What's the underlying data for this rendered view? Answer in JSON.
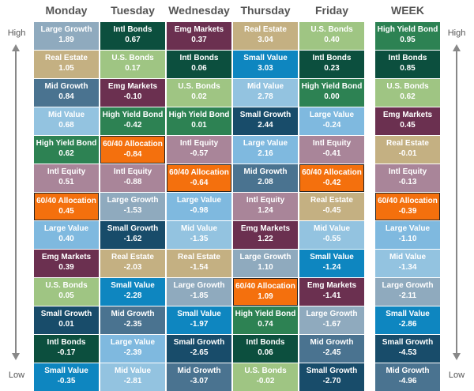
{
  "chart_data": {
    "type": "table",
    "axis": {
      "top": "High",
      "bottom": "Low"
    },
    "columns": [
      "Monday",
      "Tuesday",
      "Wednesday",
      "Thursday",
      "Friday",
      "WEEK"
    ],
    "data": [
      [
        {
          "name": "Large Growth",
          "value": "1.89"
        },
        {
          "name": "Real Estate",
          "value": "1.05"
        },
        {
          "name": "Mid Growth",
          "value": "0.84"
        },
        {
          "name": "Mid Value",
          "value": "0.68"
        },
        {
          "name": "High Yield Bond",
          "value": "0.62"
        },
        {
          "name": "Intl Equity",
          "value": "0.51"
        },
        {
          "name": "60/40 Allocation",
          "value": "0.45"
        },
        {
          "name": "Large Value",
          "value": "0.40"
        },
        {
          "name": "Emg Markets",
          "value": "0.39"
        },
        {
          "name": "U.S. Bonds",
          "value": "0.05"
        },
        {
          "name": "Small Growth",
          "value": "0.01"
        },
        {
          "name": "Intl Bonds",
          "value": "-0.17"
        },
        {
          "name": "Small Value",
          "value": "-0.35"
        }
      ],
      [
        {
          "name": "Intl Bonds",
          "value": "0.67"
        },
        {
          "name": "U.S. Bonds",
          "value": "0.17"
        },
        {
          "name": "Emg Markets",
          "value": "-0.10"
        },
        {
          "name": "High Yield Bond",
          "value": "-0.42"
        },
        {
          "name": "60/40 Allocation",
          "value": "-0.84"
        },
        {
          "name": "Intl Equity",
          "value": "-0.88"
        },
        {
          "name": "Large Growth",
          "value": "-1.53"
        },
        {
          "name": "Small Growth",
          "value": "-1.62"
        },
        {
          "name": "Real Estate",
          "value": "-2.03"
        },
        {
          "name": "Small Value",
          "value": "-2.28"
        },
        {
          "name": "Mid Growth",
          "value": "-2.35"
        },
        {
          "name": "Large Value",
          "value": "-2.39"
        },
        {
          "name": "Mid Value",
          "value": "-2.81"
        }
      ],
      [
        {
          "name": "Emg Markets",
          "value": "0.37"
        },
        {
          "name": "Intl Bonds",
          "value": "0.06"
        },
        {
          "name": "U.S. Bonds",
          "value": "0.02"
        },
        {
          "name": "High Yield Bond",
          "value": "0.01"
        },
        {
          "name": "Intl Equity",
          "value": "-0.57"
        },
        {
          "name": "60/40 Allocation",
          "value": "-0.64"
        },
        {
          "name": "Large Value",
          "value": "-0.98"
        },
        {
          "name": "Mid Value",
          "value": "-1.35"
        },
        {
          "name": "Real Estate",
          "value": "-1.54"
        },
        {
          "name": "Large Growth",
          "value": "-1.85"
        },
        {
          "name": "Small Value",
          "value": "-1.97"
        },
        {
          "name": "Small Growth",
          "value": "-2.65"
        },
        {
          "name": "Mid Growth",
          "value": "-3.07"
        }
      ],
      [
        {
          "name": "Real Estate",
          "value": "3.04"
        },
        {
          "name": "Small Value",
          "value": "3.03"
        },
        {
          "name": "Mid Value",
          "value": "2.78"
        },
        {
          "name": "Small Growth",
          "value": "2.44"
        },
        {
          "name": "Large Value",
          "value": "2.16"
        },
        {
          "name": "Mid Growth",
          "value": "2.08"
        },
        {
          "name": "Intl Equity",
          "value": "1.24"
        },
        {
          "name": "Emg Markets",
          "value": "1.22"
        },
        {
          "name": "Large Growth",
          "value": "1.10"
        },
        {
          "name": "60/40 Allocation",
          "value": "1.09"
        },
        {
          "name": "High Yield Bond",
          "value": "0.74"
        },
        {
          "name": "Intl Bonds",
          "value": "0.06"
        },
        {
          "name": "U.S. Bonds",
          "value": "-0.02"
        }
      ],
      [
        {
          "name": "U.S. Bonds",
          "value": "0.40"
        },
        {
          "name": "Intl Bonds",
          "value": "0.23"
        },
        {
          "name": "High Yield Bond",
          "value": "0.00"
        },
        {
          "name": "Large Value",
          "value": "-0.24"
        },
        {
          "name": "Intl Equity",
          "value": "-0.41"
        },
        {
          "name": "60/40 Allocation",
          "value": "-0.42"
        },
        {
          "name": "Real Estate",
          "value": "-0.45"
        },
        {
          "name": "Mid Value",
          "value": "-0.55"
        },
        {
          "name": "Small Value",
          "value": "-1.24"
        },
        {
          "name": "Emg Markets",
          "value": "-1.41"
        },
        {
          "name": "Large Growth",
          "value": "-1.67"
        },
        {
          "name": "Mid Growth",
          "value": "-2.45"
        },
        {
          "name": "Small Growth",
          "value": "-2.70"
        }
      ],
      [
        {
          "name": "High Yield Bond",
          "value": "0.95"
        },
        {
          "name": "Intl Bonds",
          "value": "0.85"
        },
        {
          "name": "U.S. Bonds",
          "value": "0.62"
        },
        {
          "name": "Emg Markets",
          "value": "0.45"
        },
        {
          "name": "Real Estate",
          "value": "-0.01"
        },
        {
          "name": "Intl Equity",
          "value": "-0.13"
        },
        {
          "name": "60/40 Allocation",
          "value": "-0.39"
        },
        {
          "name": "Large Value",
          "value": "-1.10"
        },
        {
          "name": "Mid Value",
          "value": "-1.34"
        },
        {
          "name": "Large Growth",
          "value": "-2.11"
        },
        {
          "name": "Small Value",
          "value": "-2.86"
        },
        {
          "name": "Small Growth",
          "value": "-4.53"
        },
        {
          "name": "Mid Growth",
          "value": "-4.96"
        }
      ]
    ],
    "colors": {
      "Large Growth": "#8faabe",
      "Real Estate": "#c4b082",
      "Mid Growth": "#4a7390",
      "Mid Value": "#93c3e0",
      "High Yield Bond": "#2d8253",
      "Intl Equity": "#a98599",
      "60/40 Allocation": "#f4700d",
      "Large Value": "#7fb9df",
      "Emg Markets": "#6b3050",
      "U.S. Bonds": "#9fc583",
      "Small Growth": "#184c6a",
      "Intl Bonds": "#0c4f3e",
      "Small Value": "#0e86c0"
    },
    "highlight": "60/40 Allocation"
  }
}
